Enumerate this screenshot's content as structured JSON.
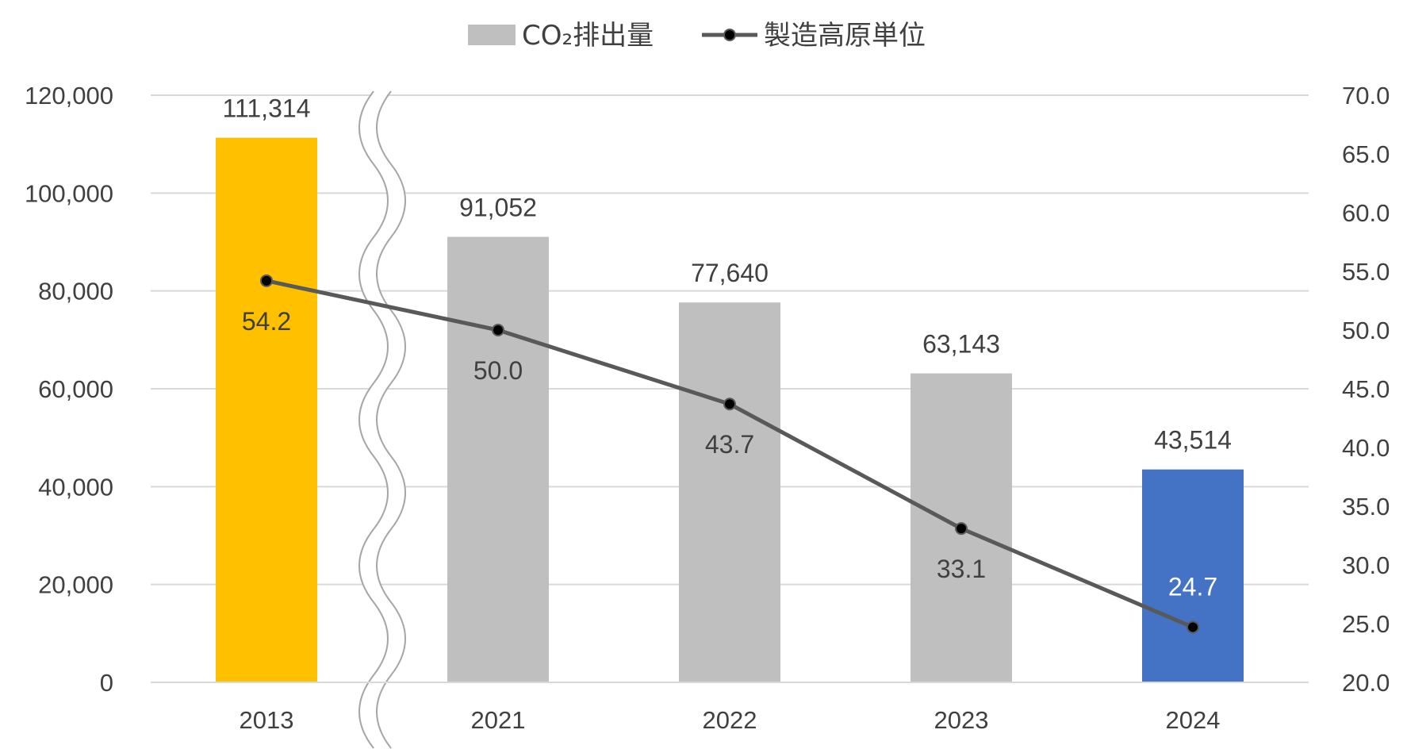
{
  "chart_data": {
    "type": "bar+line",
    "categories": [
      "2013",
      "2021",
      "2022",
      "2023",
      "2024"
    ],
    "series": [
      {
        "name": "CO₂排出量",
        "type": "bar",
        "axis": "left",
        "values": [
          111314,
          91052,
          77640,
          63143,
          43514
        ],
        "labels": [
          "111,314",
          "91,052",
          "77,640",
          "63,143",
          "43,514"
        ],
        "colors": [
          "#FFC000",
          "#BFBFBF",
          "#BFBFBF",
          "#BFBFBF",
          "#4472C4"
        ]
      },
      {
        "name": "製造高原単位",
        "type": "line",
        "axis": "right",
        "values": [
          54.2,
          50.0,
          43.7,
          33.1,
          24.7
        ],
        "labels": [
          "54.2",
          "50.0",
          "43.7",
          "33.1",
          "24.7"
        ],
        "color": "#595959"
      }
    ],
    "y_left": {
      "range": [
        0,
        120000
      ],
      "ticks": [
        "0",
        "20,000",
        "40,000",
        "60,000",
        "80,000",
        "100,000",
        "120,000"
      ]
    },
    "y_right": {
      "range": [
        20,
        70
      ],
      "ticks": [
        "20.0",
        "25.0",
        "30.0",
        "35.0",
        "40.0",
        "45.0",
        "50.0",
        "55.0",
        "60.0",
        "65.0",
        "70.0"
      ]
    },
    "grid": true,
    "legend": "top-center",
    "axis_break": "between 2013 and 2021"
  }
}
